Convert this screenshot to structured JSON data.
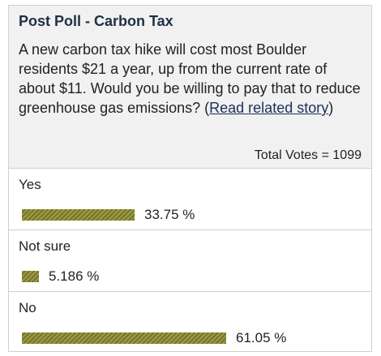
{
  "poll": {
    "title": "Post Poll - Carbon Tax",
    "question_text": "A new carbon tax hike will cost most Boulder residents $21 a year, up from the current rate of about $11. Would you be willing to pay that to reduce greenhouse gas emissions? (",
    "link_text": "Read related story",
    "question_suffix": ")",
    "total_votes": "Total Votes = 1099",
    "bar_color": "#8a8a3a",
    "options": [
      {
        "label": "Yes",
        "percent_text": "33.75 %",
        "percent": 33.75
      },
      {
        "label": "Not sure",
        "percent_text": "5.186 %",
        "percent": 5.186
      },
      {
        "label": "No",
        "percent_text": "61.05 %",
        "percent": 61.05
      }
    ]
  }
}
